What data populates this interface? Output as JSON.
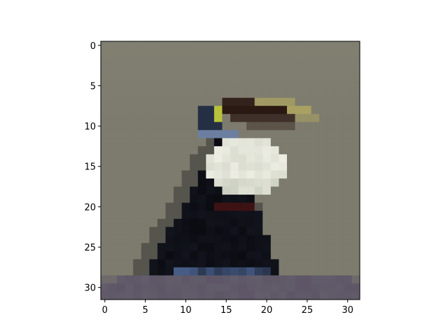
{
  "figure": {
    "image_grid": {
      "rows": 32,
      "cols": 32
    },
    "axes": {
      "x_ticks": [
        "0",
        "5",
        "10",
        "15",
        "20",
        "25",
        "30"
      ],
      "y_ticks": [
        "0",
        "5",
        "10",
        "15",
        "20",
        "25",
        "30"
      ],
      "x_tick_values": [
        0,
        5,
        10,
        15,
        20,
        25,
        30
      ],
      "y_tick_values": [
        0,
        5,
        10,
        15,
        20,
        25,
        30
      ]
    },
    "colors": {
      "background": "#7d7b6d",
      "bird_black": "#0b0c12",
      "breast_white": "#eeeee4",
      "beak_dark": "#2a1812",
      "beak_yellow": "#a9a062",
      "eye_yellow": "#b8c23a",
      "blue_patch": "#4b6390",
      "red_band": "#4a1414",
      "ground": "#5e5666"
    }
  }
}
